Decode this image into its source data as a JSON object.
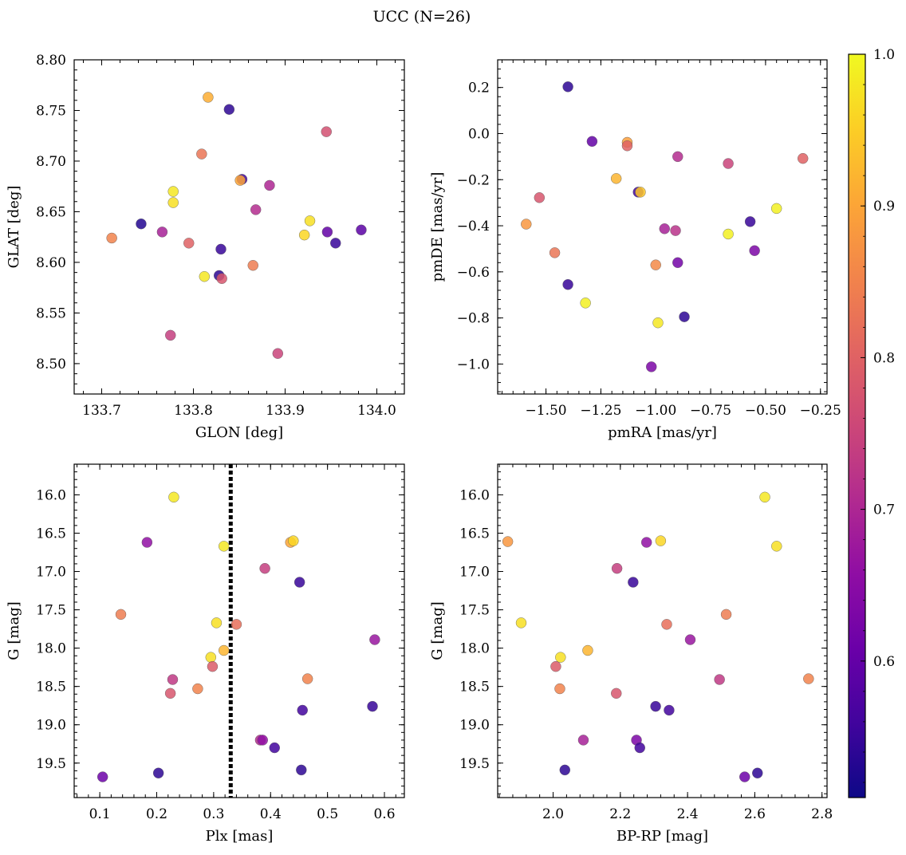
{
  "figure": {
    "title": "UCC (N=26)"
  },
  "colorbar": {
    "cmap": "plasma",
    "min": 0.51,
    "max": 1.0,
    "ticks": [
      "0.6",
      "0.7",
      "0.8",
      "0.9",
      "1.0"
    ]
  },
  "chart_data": [
    {
      "type": "scatter",
      "xlabel": "GLON [deg]",
      "ylabel": "GLAT [deg]",
      "xlim": [
        133.67,
        134.03
      ],
      "ylim": [
        8.47,
        8.8
      ],
      "xticks": [
        "133.7",
        "133.8",
        "133.9",
        "134.0"
      ],
      "yticks": [
        "8.50",
        "8.55",
        "8.60",
        "8.65",
        "8.70",
        "8.75",
        "8.80"
      ],
      "points": [
        {
          "x": 133.816,
          "y": 8.763,
          "c": 0.91
        },
        {
          "x": 133.839,
          "y": 8.751,
          "c": 0.54
        },
        {
          "x": 133.945,
          "y": 8.729,
          "c": 0.77
        },
        {
          "x": 133.809,
          "y": 8.707,
          "c": 0.83
        },
        {
          "x": 133.853,
          "y": 8.682,
          "c": 0.56
        },
        {
          "x": 133.851,
          "y": 8.681,
          "c": 0.9
        },
        {
          "x": 133.883,
          "y": 8.676,
          "c": 0.7
        },
        {
          "x": 133.778,
          "y": 8.67,
          "c": 0.98
        },
        {
          "x": 133.778,
          "y": 8.659,
          "c": 0.97
        },
        {
          "x": 133.868,
          "y": 8.652,
          "c": 0.71
        },
        {
          "x": 133.927,
          "y": 8.641,
          "c": 0.97
        },
        {
          "x": 133.743,
          "y": 8.638,
          "c": 0.53
        },
        {
          "x": 133.983,
          "y": 8.632,
          "c": 0.59
        },
        {
          "x": 133.766,
          "y": 8.63,
          "c": 0.69
        },
        {
          "x": 133.946,
          "y": 8.63,
          "c": 0.6
        },
        {
          "x": 133.921,
          "y": 8.627,
          "c": 0.96
        },
        {
          "x": 133.711,
          "y": 8.624,
          "c": 0.85
        },
        {
          "x": 133.795,
          "y": 8.619,
          "c": 0.8
        },
        {
          "x": 133.955,
          "y": 8.619,
          "c": 0.55
        },
        {
          "x": 133.83,
          "y": 8.613,
          "c": 0.55
        },
        {
          "x": 133.865,
          "y": 8.597,
          "c": 0.84
        },
        {
          "x": 133.812,
          "y": 8.586,
          "c": 0.98
        },
        {
          "x": 133.828,
          "y": 8.587,
          "c": 0.54
        },
        {
          "x": 133.831,
          "y": 8.584,
          "c": 0.78
        },
        {
          "x": 133.775,
          "y": 8.528,
          "c": 0.74
        },
        {
          "x": 133.892,
          "y": 8.51,
          "c": 0.75
        }
      ]
    },
    {
      "type": "scatter",
      "xlabel": "pmRA [mas/yr]",
      "ylabel": "pmDE [mas/yr]",
      "xlim": [
        -1.72,
        -0.22
      ],
      "ylim": [
        -1.13,
        0.32
      ],
      "xticks": [
        "−1.50",
        "−1.25",
        "−1.00",
        "−0.75",
        "−0.50",
        "−0.25"
      ],
      "yticks": [
        "−1.0",
        "−0.8",
        "−0.6",
        "−0.4",
        "−0.2",
        "0.0",
        "0.2"
      ],
      "points": [
        {
          "x": -1.4,
          "y": 0.203,
          "c": 0.54
        },
        {
          "x": -1.29,
          "y": -0.034,
          "c": 0.6
        },
        {
          "x": -1.13,
          "y": -0.038,
          "c": 0.89
        },
        {
          "x": -1.13,
          "y": -0.053,
          "c": 0.8
        },
        {
          "x": -0.9,
          "y": -0.1,
          "c": 0.71
        },
        {
          "x": -0.33,
          "y": -0.108,
          "c": 0.8
        },
        {
          "x": -0.67,
          "y": -0.13,
          "c": 0.75
        },
        {
          "x": -1.18,
          "y": -0.195,
          "c": 0.92
        },
        {
          "x": -1.08,
          "y": -0.254,
          "c": 0.56
        },
        {
          "x": -1.07,
          "y": -0.254,
          "c": 0.94
        },
        {
          "x": -1.53,
          "y": -0.278,
          "c": 0.78
        },
        {
          "x": -0.45,
          "y": -0.325,
          "c": 0.99
        },
        {
          "x": -0.57,
          "y": -0.382,
          "c": 0.55
        },
        {
          "x": -1.59,
          "y": -0.393,
          "c": 0.88
        },
        {
          "x": -0.96,
          "y": -0.413,
          "c": 0.69
        },
        {
          "x": -0.91,
          "y": -0.421,
          "c": 0.72
        },
        {
          "x": -0.67,
          "y": -0.436,
          "c": 0.99
        },
        {
          "x": -0.55,
          "y": -0.508,
          "c": 0.63
        },
        {
          "x": -1.46,
          "y": -0.517,
          "c": 0.83
        },
        {
          "x": -0.9,
          "y": -0.56,
          "c": 0.62
        },
        {
          "x": -1.0,
          "y": -0.57,
          "c": 0.86
        },
        {
          "x": -1.4,
          "y": -0.655,
          "c": 0.55
        },
        {
          "x": -1.32,
          "y": -0.735,
          "c": 0.99
        },
        {
          "x": -0.87,
          "y": -0.795,
          "c": 0.54
        },
        {
          "x": -0.99,
          "y": -0.821,
          "c": 0.98
        },
        {
          "x": -1.02,
          "y": -1.012,
          "c": 0.63
        }
      ]
    },
    {
      "type": "scatter",
      "xlabel": "Plx [mas]",
      "ylabel": "G [mag]",
      "xlim": [
        0.055,
        0.635
      ],
      "ylim": [
        19.95,
        15.6
      ],
      "y_inverted": true,
      "vline": 0.33,
      "xticks": [
        "0.1",
        "0.2",
        "0.3",
        "0.4",
        "0.5",
        "0.6"
      ],
      "yticks": [
        "16.0",
        "16.5",
        "17.0",
        "17.5",
        "18.0",
        "18.5",
        "19.0",
        "19.5"
      ],
      "points": [
        {
          "x": 0.23,
          "y": 16.03,
          "c": 0.98
        },
        {
          "x": 0.183,
          "y": 16.62,
          "c": 0.66
        },
        {
          "x": 0.318,
          "y": 16.67,
          "c": 0.98
        },
        {
          "x": 0.435,
          "y": 16.62,
          "c": 0.9
        },
        {
          "x": 0.44,
          "y": 16.6,
          "c": 0.96
        },
        {
          "x": 0.39,
          "y": 16.96,
          "c": 0.74
        },
        {
          "x": 0.451,
          "y": 17.14,
          "c": 0.55
        },
        {
          "x": 0.137,
          "y": 17.56,
          "c": 0.84
        },
        {
          "x": 0.305,
          "y": 17.67,
          "c": 0.97
        },
        {
          "x": 0.34,
          "y": 17.69,
          "c": 0.82
        },
        {
          "x": 0.583,
          "y": 17.89,
          "c": 0.67
        },
        {
          "x": 0.318,
          "y": 18.03,
          "c": 0.92
        },
        {
          "x": 0.295,
          "y": 18.12,
          "c": 0.97
        },
        {
          "x": 0.298,
          "y": 18.24,
          "c": 0.79
        },
        {
          "x": 0.465,
          "y": 18.4,
          "c": 0.85
        },
        {
          "x": 0.228,
          "y": 18.41,
          "c": 0.73
        },
        {
          "x": 0.272,
          "y": 18.53,
          "c": 0.85
        },
        {
          "x": 0.224,
          "y": 18.59,
          "c": 0.78
        },
        {
          "x": 0.579,
          "y": 18.76,
          "c": 0.55
        },
        {
          "x": 0.456,
          "y": 18.81,
          "c": 0.56
        },
        {
          "x": 0.382,
          "y": 19.2,
          "c": 0.71
        },
        {
          "x": 0.386,
          "y": 19.2,
          "c": 0.66
        },
        {
          "x": 0.407,
          "y": 19.3,
          "c": 0.56
        },
        {
          "x": 0.454,
          "y": 19.59,
          "c": 0.54
        },
        {
          "x": 0.203,
          "y": 19.63,
          "c": 0.54
        },
        {
          "x": 0.105,
          "y": 19.68,
          "c": 0.61
        }
      ]
    },
    {
      "type": "scatter",
      "xlabel": "BP-RP [mag]",
      "ylabel": "G [mag]",
      "xlim": [
        1.835,
        2.815
      ],
      "ylim": [
        19.95,
        15.6
      ],
      "y_inverted": true,
      "xticks": [
        "2.0",
        "2.2",
        "2.4",
        "2.6",
        "2.8"
      ],
      "yticks": [
        "16.0",
        "16.5",
        "17.0",
        "17.5",
        "18.0",
        "18.5",
        "19.0",
        "19.5"
      ],
      "points": [
        {
          "x": 2.63,
          "y": 16.03,
          "c": 0.98
        },
        {
          "x": 1.865,
          "y": 16.61,
          "c": 0.88
        },
        {
          "x": 2.32,
          "y": 16.6,
          "c": 0.96
        },
        {
          "x": 2.278,
          "y": 16.62,
          "c": 0.66
        },
        {
          "x": 2.665,
          "y": 16.67,
          "c": 0.97
        },
        {
          "x": 2.19,
          "y": 16.96,
          "c": 0.74
        },
        {
          "x": 2.238,
          "y": 17.14,
          "c": 0.55
        },
        {
          "x": 2.515,
          "y": 17.56,
          "c": 0.84
        },
        {
          "x": 1.905,
          "y": 17.67,
          "c": 0.97
        },
        {
          "x": 2.338,
          "y": 17.69,
          "c": 0.82
        },
        {
          "x": 2.408,
          "y": 17.89,
          "c": 0.67
        },
        {
          "x": 2.103,
          "y": 18.03,
          "c": 0.92
        },
        {
          "x": 2.022,
          "y": 18.12,
          "c": 0.97
        },
        {
          "x": 2.008,
          "y": 18.24,
          "c": 0.79
        },
        {
          "x": 2.76,
          "y": 18.4,
          "c": 0.85
        },
        {
          "x": 2.495,
          "y": 18.41,
          "c": 0.73
        },
        {
          "x": 2.02,
          "y": 18.53,
          "c": 0.85
        },
        {
          "x": 2.188,
          "y": 18.59,
          "c": 0.78
        },
        {
          "x": 2.305,
          "y": 18.76,
          "c": 0.55
        },
        {
          "x": 2.345,
          "y": 18.81,
          "c": 0.56
        },
        {
          "x": 2.248,
          "y": 19.2,
          "c": 0.63
        },
        {
          "x": 2.09,
          "y": 19.2,
          "c": 0.69
        },
        {
          "x": 2.258,
          "y": 19.3,
          "c": 0.56
        },
        {
          "x": 2.035,
          "y": 19.59,
          "c": 0.54
        },
        {
          "x": 2.608,
          "y": 19.63,
          "c": 0.54
        },
        {
          "x": 2.57,
          "y": 19.68,
          "c": 0.61
        }
      ]
    }
  ]
}
